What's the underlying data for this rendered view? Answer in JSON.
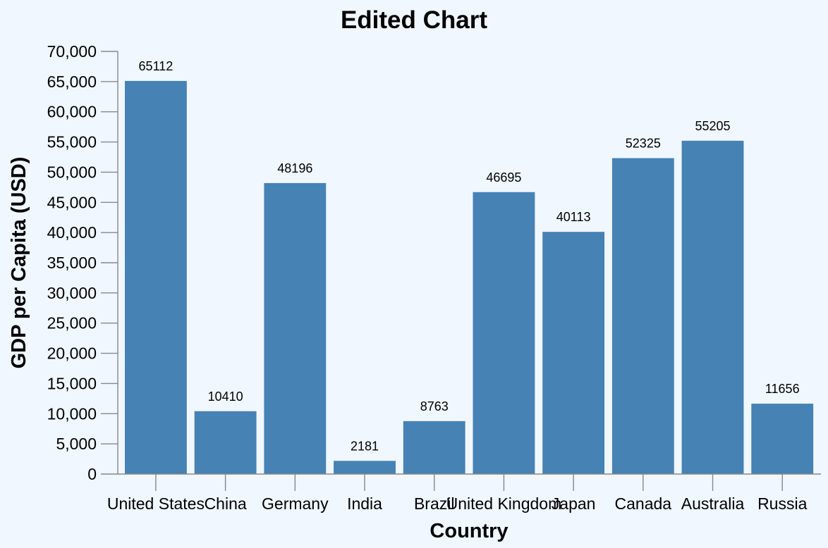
{
  "chart_data": {
    "type": "bar",
    "title": "Edited Chart",
    "xlabel": "Country",
    "ylabel": "GDP per Capita (USD)",
    "categories": [
      "United States",
      "China",
      "Germany",
      "India",
      "Brazil",
      "United Kingdom",
      "Japan",
      "Canada",
      "Australia",
      "Russia"
    ],
    "values": [
      65112,
      10410,
      48196,
      2181,
      8763,
      46695,
      40113,
      52325,
      55205,
      11656
    ],
    "ylim": [
      0,
      70000
    ],
    "yticks": [
      0,
      5000,
      10000,
      15000,
      20000,
      25000,
      30000,
      35000,
      40000,
      45000,
      50000,
      55000,
      60000,
      65000,
      70000
    ],
    "ytick_labels": [
      "0",
      "5,000",
      "10,000",
      "15,000",
      "20,000",
      "25,000",
      "30,000",
      "35,000",
      "40,000",
      "45,000",
      "50,000",
      "55,000",
      "60,000",
      "65,000",
      "70,000"
    ],
    "grid": false,
    "legend": "none",
    "colors": {
      "bar": "#4682b4",
      "background": "#f0f7ff",
      "axis": "#888888"
    }
  }
}
